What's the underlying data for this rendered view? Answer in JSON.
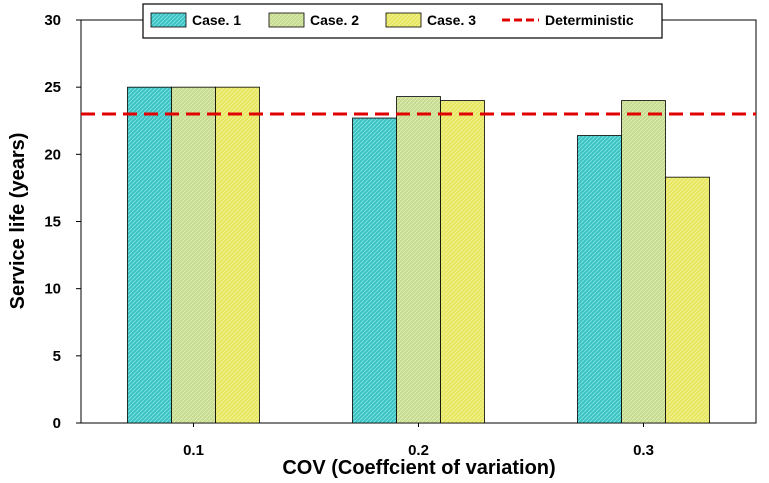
{
  "chart_data": {
    "type": "bar",
    "title": "",
    "xlabel": "COV (Coeffcient of variation)",
    "ylabel": "Service life (years)",
    "categories": [
      "0.1",
      "0.2",
      "0.3"
    ],
    "ylim": [
      0,
      30
    ],
    "yticks": [
      "0",
      "5",
      "10",
      "15",
      "20",
      "25",
      "30"
    ],
    "series": [
      {
        "name": "Case. 1",
        "values": [
          25.0,
          22.7,
          21.4
        ],
        "color": "#3fc4c4"
      },
      {
        "name": "Case. 2",
        "values": [
          25.0,
          24.3,
          24.0
        ],
        "color": "#c6dc8e"
      },
      {
        "name": "Case. 3",
        "values": [
          25.0,
          24.0,
          18.3
        ],
        "color": "#e6e661"
      }
    ],
    "reference_line": {
      "name": "Deterministic",
      "value": 23.0,
      "color": "#e00000",
      "style": "dashed"
    },
    "grid": false,
    "legend_position": "top"
  }
}
